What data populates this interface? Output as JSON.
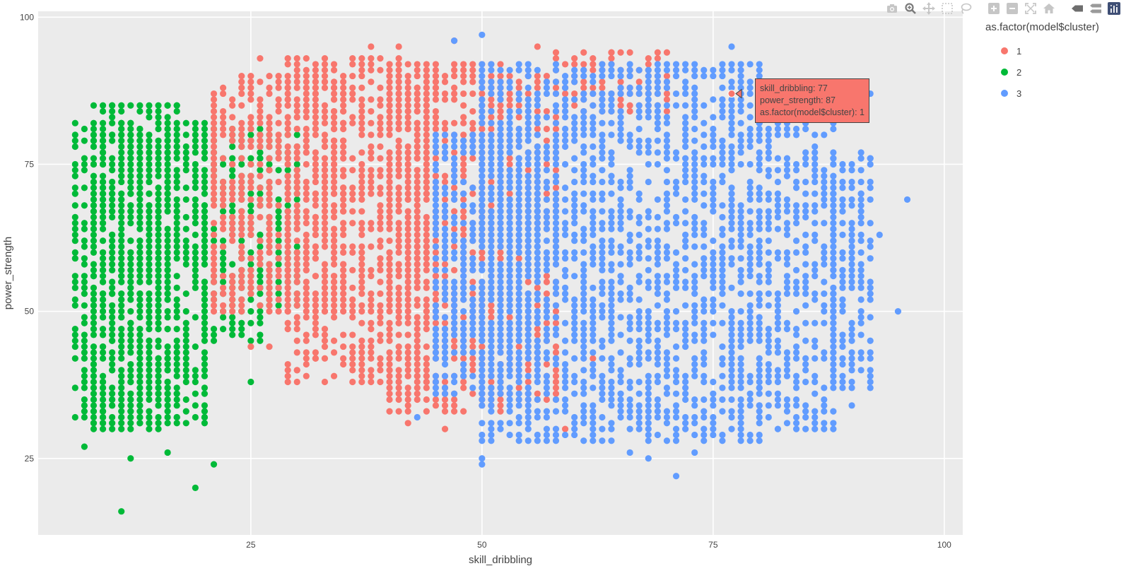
{
  "modebar": {
    "icons": [
      "camera-icon",
      "zoom-icon",
      "pan-icon",
      "box-select-icon",
      "lasso-icon",
      "zoom-in-icon",
      "zoom-out-icon",
      "autoscale-icon",
      "home-icon",
      "spike-lines-icon",
      "compare-hover-icon",
      "plotly-logo-icon"
    ]
  },
  "tooltip": {
    "line1": "skill_dribbling: 77",
    "line2": "power_strength: 87",
    "line3": "as.factor(model$cluster): 1",
    "bg_color": "#f8766d"
  },
  "legend": {
    "title": "as.factor(model$cluster)",
    "items": [
      {
        "label": "1",
        "color": "#f8766d"
      },
      {
        "label": "2",
        "color": "#00ba38"
      },
      {
        "label": "3",
        "color": "#619cff"
      }
    ]
  },
  "chart_data": {
    "type": "scatter",
    "xlabel": "skill_dribbling",
    "ylabel": "power_strength",
    "xlim": [
      2,
      102
    ],
    "ylim": [
      12,
      101
    ],
    "xticks": [
      25,
      50,
      75,
      100
    ],
    "yticks": [
      25,
      50,
      75,
      100
    ],
    "grid": true,
    "legend_placement": "right",
    "background": "#ebebeb",
    "hover_point": {
      "x": 77,
      "y": 87,
      "cluster": "1"
    },
    "series": [
      {
        "name": "1",
        "color": "#f8766d",
        "regions": [
          {
            "x0": 21,
            "x1": 35,
            "y0": 50,
            "y1": 90
          },
          {
            "x0": 29,
            "x1": 45,
            "y0": 38,
            "y1": 93
          },
          {
            "x0": 40,
            "x1": 52,
            "y0": 33,
            "y1": 92
          },
          {
            "x0": 50,
            "x1": 58,
            "y0": 35,
            "y1": 90
          },
          {
            "x0": 58,
            "x1": 70,
            "y0": 84,
            "y1": 94
          }
        ],
        "points": [
          [
            26,
            93
          ],
          [
            38,
            95
          ],
          [
            41,
            95
          ],
          [
            56,
            95
          ],
          [
            64,
            94
          ],
          [
            69,
            94
          ],
          [
            47,
            96
          ],
          [
            32,
            42
          ],
          [
            30,
            40
          ],
          [
            36,
            43
          ],
          [
            27,
            44
          ],
          [
            25,
            44
          ],
          [
            42,
            31
          ],
          [
            46,
            30
          ],
          [
            59,
            30
          ],
          [
            62,
            42
          ],
          [
            77,
            87
          ]
        ]
      },
      {
        "name": "2",
        "color": "#00ba38",
        "regions": [
          {
            "x0": 6,
            "x1": 20,
            "y0": 31,
            "y1": 82
          },
          {
            "x0": 8,
            "x1": 17,
            "y0": 30,
            "y1": 85
          },
          {
            "x0": 20,
            "x1": 26,
            "y0": 45,
            "y1": 81
          },
          {
            "x0": 26,
            "x1": 30,
            "y0": 51,
            "y1": 80
          }
        ],
        "points": [
          [
            11,
            16
          ],
          [
            19,
            20
          ],
          [
            21,
            24
          ],
          [
            12,
            25
          ],
          [
            7,
            27
          ],
          [
            16,
            26
          ],
          [
            18,
            33
          ],
          [
            20,
            32
          ],
          [
            6,
            73
          ],
          [
            9,
            85
          ],
          [
            10,
            85
          ],
          [
            16,
            85
          ],
          [
            17,
            85
          ],
          [
            25,
            38
          ],
          [
            24,
            47
          ],
          [
            30,
            56
          ],
          [
            30,
            80
          ]
        ]
      },
      {
        "name": "3",
        "color": "#619cff",
        "regions": [
          {
            "x0": 50,
            "x1": 80,
            "y0": 28,
            "y1": 92
          },
          {
            "x0": 45,
            "x1": 56,
            "y0": 36,
            "y1": 80
          },
          {
            "x0": 80,
            "x1": 88,
            "y0": 30,
            "y1": 85
          },
          {
            "x0": 88,
            "x1": 92,
            "y0": 37,
            "y1": 77
          }
        ],
        "points": [
          [
            50,
            97
          ],
          [
            50,
            25
          ],
          [
            50,
            24
          ],
          [
            71,
            22
          ],
          [
            73,
            26
          ],
          [
            66,
            26
          ],
          [
            68,
            25
          ],
          [
            95,
            50
          ],
          [
            96,
            69
          ],
          [
            93,
            63
          ],
          [
            92,
            87
          ],
          [
            91,
            70
          ],
          [
            92,
            76
          ],
          [
            90,
            34
          ],
          [
            89,
            51
          ],
          [
            77,
            95
          ],
          [
            47,
            96
          ],
          [
            43,
            32
          ]
        ]
      }
    ]
  }
}
